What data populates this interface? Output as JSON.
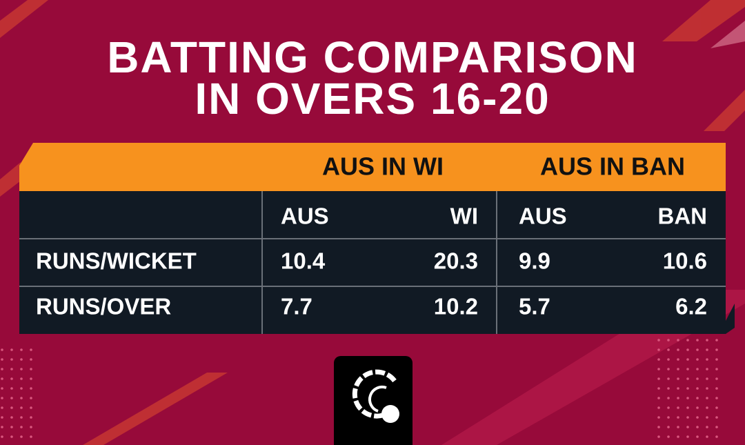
{
  "title": {
    "lines": [
      "BATTING COMPARISON",
      "IN OVERS 16-20"
    ]
  },
  "table": {
    "groups": [
      "AUS IN WI",
      "AUS IN BAN"
    ],
    "columns": [
      "AUS",
      "WI",
      "AUS",
      "BAN"
    ],
    "rows": [
      [
        "RUNS/WICKET",
        "10.4",
        "20.3",
        "9.9",
        "10.6"
      ],
      [
        "RUNS/OVER",
        "7.7",
        "10.2",
        "5.7",
        "6.2"
      ]
    ]
  }
}
